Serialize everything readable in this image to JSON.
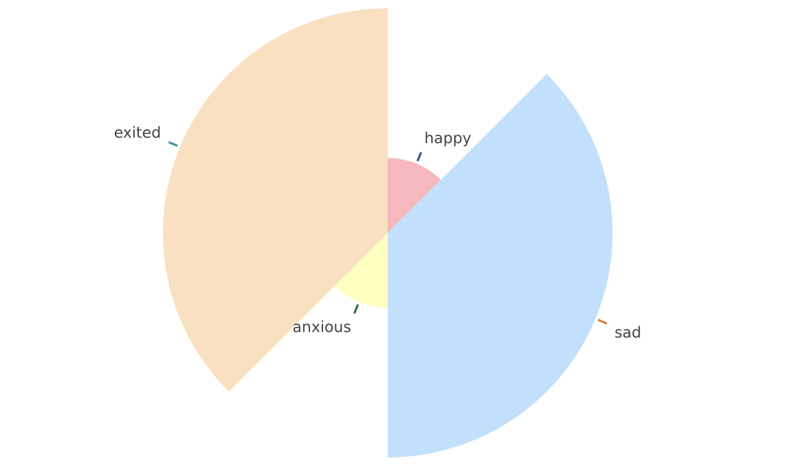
{
  "chart_data": {
    "type": "pie",
    "variant": "polar-area",
    "title": "",
    "start_angle_deg": 0,
    "direction": "clockwise",
    "categories": [
      "happy",
      "sad",
      "anxious",
      "exited"
    ],
    "slices": [
      {
        "label": "happy",
        "angle_deg": 45,
        "radius": 1.0,
        "color": "#f4b8bd",
        "connector_color": "#2c5a86"
      },
      {
        "label": "sad",
        "angle_deg": 135,
        "radius": 3.0,
        "color": "#c2e0fb",
        "connector_color": "#c87a38"
      },
      {
        "label": "anxious",
        "angle_deg": 45,
        "radius": 1.0,
        "color": "#ffffc0",
        "connector_color": "#2e6b38"
      },
      {
        "label": "exited",
        "angle_deg": 135,
        "radius": 3.0,
        "color": "#f9e0c0",
        "connector_color": "#3a8a9a"
      }
    ]
  }
}
